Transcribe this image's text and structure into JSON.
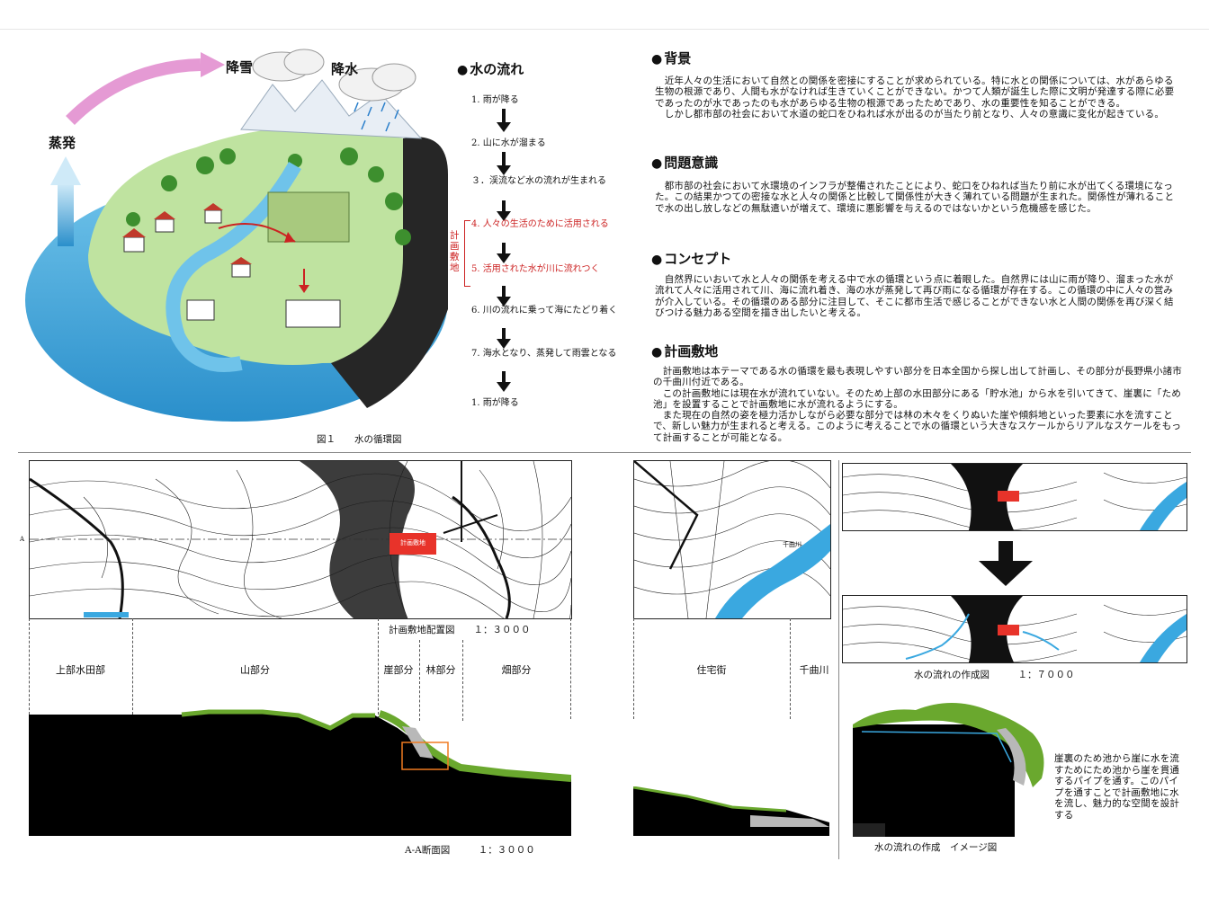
{
  "illustration": {
    "labels": {
      "snow": "降雪",
      "rain": "降水",
      "evaporation": "蒸発"
    },
    "caption": "図１　　水の循環図"
  },
  "flow": {
    "title": "水の流れ",
    "steps": [
      "1. 雨が降る",
      "2. 山に水が溜まる",
      "３．渓流など水の流れが生まれる",
      "4. 人々の生活のために活用される",
      "5. 活用された水が川に流れつく",
      "6. 川の流れに乗って海にたどり着く",
      "7. 海水となり、蒸発して雨雲となる",
      "1. 雨が降る"
    ],
    "bracket_label": "計画敷地"
  },
  "sections": {
    "background": {
      "title": "背景",
      "text": "　近年人々の生活において自然との関係を密接にすることが求められている。特に水との関係については、水があらゆる生物の根源であり、人間も水がなければ生きていくことができない。かつて人類が誕生した際に文明が発達する際に必要であったのが水であったのも水があらゆる生物の根源であったためであり、水の重要性を知ることができる。\n　しかし都市部の社会において水道の蛇口をひねれば水が出るのが当たり前となり、人々の意識に変化が起きている。"
    },
    "issue": {
      "title": "問題意識",
      "text": "　都市部の社会において水環境のインフラが整備されたことにより、蛇口をひねれば当たり前に水が出てくる環境になった。この結果かつての密接な水と人々の関係と比較して関係性が大きく薄れている問題が生まれた。関係性が薄れることで水の出し放しなどの無駄遣いが増えて、環境に悪影響を与えるのではないかという危機感を感じた。"
    },
    "concept": {
      "title": "コンセプト",
      "text": "　自然界にいおいて水と人々の関係を考える中で水の循環という点に着眼した。自然界には山に雨が降り、溜まった水が流れて人々に活用されて川、海に流れ着き、海の水が蒸発して再び雨になる循環が存在する。この循環の中に人々の営みが介入している。その循環のある部分に注目して、そこに都市生活で感じることができない水と人間の関係を再び深く結びつける魅力ある空間を描き出したいと考える。"
    },
    "site": {
      "title": "計画敷地",
      "text": "　計画敷地は本テーマである水の循環を最も表現しやすい部分を日本全国から探し出して計画し、その部分が長野県小諸市の千曲川付近である。\n　この計画敷地には現在水が流れていない。そのため上部の水田部分にある「貯水池」から水を引いてきて、崖裏に「ため池」を設置することで計画敷地に水が流れるようにする。\n　また現在の自然の姿を極力活かしながら必要な部分では林の木々をくりぬいた崖や傾斜地といった要素に水を流すことで、新しい魅力が生まれると考える。このように考えることで水の循環という大きなスケールからリアルなスケールをもって計画することが可能となる。"
    }
  },
  "drawings": {
    "site_plan": {
      "caption": "計画敷地配置図　　１：３０００",
      "site_label": "計画敷地",
      "river_label": "千曲川",
      "section_marker": "A"
    },
    "section": {
      "caption": "A-A断面図　　　１：３０００",
      "zones": [
        "上部水田部",
        "山部分",
        "崖部分",
        "林部分",
        "畑部分",
        "住宅街",
        "千曲川"
      ]
    },
    "flow_map": {
      "caption": "水の流れの作成図　　　１：７０００"
    },
    "image_view": {
      "caption": "水の流れの作成　イメージ図",
      "text": "崖裏のため池から崖に水を流すためにため池から崖を貫通するパイプを通す。このパイプを通すことで計画敷地に水を流し、魅力的な空間を設計する"
    }
  },
  "colors": {
    "accent_red": "#cc2222",
    "site_fill": "#e8332a",
    "river_blue": "#3aa8e0",
    "vegetation": "#6aa82e",
    "orange_marker": "#f07a20"
  }
}
